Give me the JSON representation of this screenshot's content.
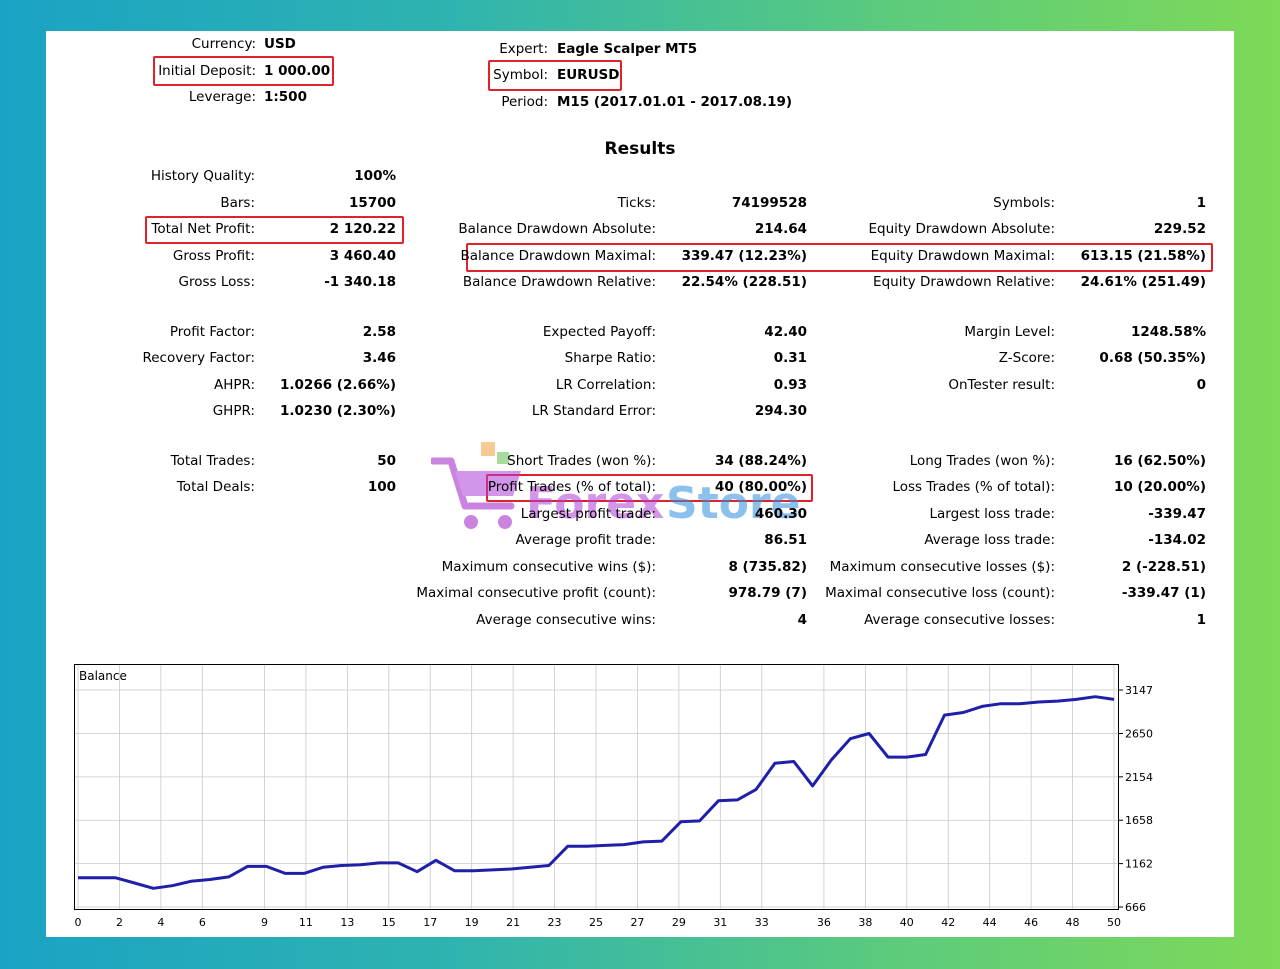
{
  "header": {
    "currency_label": "Currency:",
    "currency": "USD",
    "deposit_label": "Initial Deposit:",
    "deposit": "1 000.00",
    "leverage_label": "Leverage:",
    "leverage": "1:500",
    "expert_label": "Expert:",
    "expert": "Eagle Scalper MT5",
    "symbol_label": "Symbol:",
    "symbol": "EURUSD",
    "period_label": "Period:",
    "period": "M15 (2017.01.01 - 2017.08.19)"
  },
  "results_title": "Results",
  "col1": [
    {
      "label": "History Quality:",
      "value": "100%"
    },
    {
      "label": "Bars:",
      "value": "15700"
    },
    {
      "label": "Total Net Profit:",
      "value": "2 120.22"
    },
    {
      "label": "Gross Profit:",
      "value": "3 460.40"
    },
    {
      "label": "Gross Loss:",
      "value": "-1 340.18"
    },
    {
      "label": "Profit Factor:",
      "value": "2.58"
    },
    {
      "label": "Recovery Factor:",
      "value": "3.46"
    },
    {
      "label": "AHPR:",
      "value": "1.0266 (2.66%)"
    },
    {
      "label": "GHPR:",
      "value": "1.0230 (2.30%)"
    },
    {
      "label": "Total Trades:",
      "value": "50"
    },
    {
      "label": "Total Deals:",
      "value": "100"
    }
  ],
  "col2": [
    {
      "label": "Ticks:",
      "value": "74199528"
    },
    {
      "label": "Balance Drawdown Absolute:",
      "value": "214.64"
    },
    {
      "label": "Balance Drawdown Maximal:",
      "value": "339.47 (12.23%)"
    },
    {
      "label": "Balance Drawdown Relative:",
      "value": "22.54% (228.51)"
    },
    {
      "label": "Expected Payoff:",
      "value": "42.40"
    },
    {
      "label": "Sharpe Ratio:",
      "value": "0.31"
    },
    {
      "label": "LR Correlation:",
      "value": "0.93"
    },
    {
      "label": "LR Standard Error:",
      "value": "294.30"
    },
    {
      "label": "Short Trades (won %):",
      "value": "34 (88.24%)"
    },
    {
      "label": "Profit Trades (% of total):",
      "value": "40 (80.00%)"
    },
    {
      "label": "Largest profit trade:",
      "value": "460.30"
    },
    {
      "label": "Average profit trade:",
      "value": "86.51"
    },
    {
      "label": "Maximum consecutive wins ($):",
      "value": "8 (735.82)"
    },
    {
      "label": "Maximal consecutive profit (count):",
      "value": "978.79 (7)"
    },
    {
      "label": "Average consecutive wins:",
      "value": "4"
    }
  ],
  "col3": [
    {
      "label": "Symbols:",
      "value": "1"
    },
    {
      "label": "Equity Drawdown Absolute:",
      "value": "229.52"
    },
    {
      "label": "Equity Drawdown Maximal:",
      "value": "613.15 (21.58%)"
    },
    {
      "label": "Equity Drawdown Relative:",
      "value": "24.61% (251.49)"
    },
    {
      "label": "Margin Level:",
      "value": "1248.58%"
    },
    {
      "label": "Z-Score:",
      "value": "0.68 (50.35%)"
    },
    {
      "label": "OnTester result:",
      "value": "0"
    },
    {
      "label": "Long Trades (won %):",
      "value": "16 (62.50%)"
    },
    {
      "label": "Loss Trades (% of total):",
      "value": "10 (20.00%)"
    },
    {
      "label": "Largest loss trade:",
      "value": "-339.47"
    },
    {
      "label": "Average loss trade:",
      "value": "-134.02"
    },
    {
      "label": "Maximum consecutive losses ($):",
      "value": "2 (-228.51)"
    },
    {
      "label": "Maximal consecutive loss (count):",
      "value": "-339.47 (1)"
    },
    {
      "label": "Average consecutive losses:",
      "value": "1"
    }
  ],
  "watermark": {
    "text_a": "Forex",
    "text_b": "Store"
  },
  "colors": {
    "line": "#1f1fa8",
    "highlight": "#e0232b",
    "grid": "#c9c9c9"
  },
  "chart_data": {
    "type": "line",
    "title": "Balance",
    "x_ticks": [
      "0",
      "2",
      "4",
      "6",
      "9",
      "11",
      "13",
      "15",
      "17",
      "19",
      "21",
      "23",
      "25",
      "27",
      "29",
      "31",
      "33",
      "36",
      "38",
      "40",
      "42",
      "44",
      "46",
      "48",
      "50"
    ],
    "y_ticks": [
      "3147",
      "2650",
      "2154",
      "1658",
      "1162",
      "666"
    ],
    "ylim": [
      666,
      3147
    ],
    "xlim": [
      0,
      50
    ],
    "grid": true,
    "series": [
      {
        "values": [
          1000,
          1000,
          1000,
          940,
          880,
          910,
          960,
          980,
          1010,
          1130,
          1130,
          1050,
          1050,
          1120,
          1140,
          1150,
          1170,
          1170,
          1070,
          1200,
          1080,
          1080,
          1090,
          1100,
          1120,
          1140,
          1360,
          1360,
          1370,
          1380,
          1410,
          1420,
          1640,
          1650,
          1880,
          1890,
          2010,
          2310,
          2330,
          2050,
          2350,
          2590,
          2650,
          2380,
          2380,
          2410,
          2860,
          2890,
          2960,
          2990,
          2990,
          3010,
          3020,
          3040,
          3070,
          3040
        ]
      }
    ]
  }
}
